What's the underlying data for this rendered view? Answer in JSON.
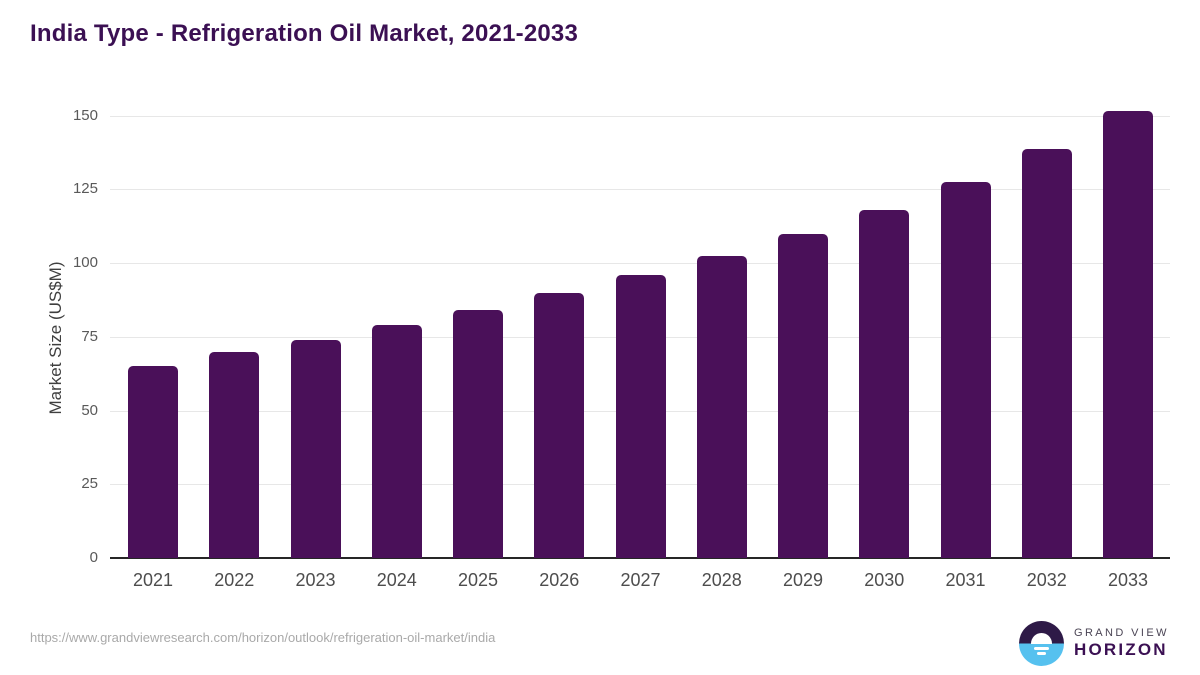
{
  "title": "India Type - Refrigeration Oil Market, 2021-2033",
  "source_url": "https://www.grandviewresearch.com/horizon/outlook/refrigeration-oil-market/india",
  "logo": {
    "top_text": "GRAND VIEW",
    "bottom_text": "HORIZON"
  },
  "colors": {
    "bar": "#4a1059",
    "title": "#3b1053",
    "axis_line": "#262626",
    "gridline": "#e7e7e7",
    "y_tick_text": "#595959",
    "x_tick_text": "#4d4d4d",
    "url_text": "#a9a9a9",
    "logo_dark": "#2e1a47",
    "logo_blue": "#56c1ef"
  },
  "chart_data": {
    "type": "bar",
    "title": "India Type - Refrigeration Oil Market, 2021-2033",
    "xlabel": "",
    "ylabel": "Market Size (US$M)",
    "categories": [
      "2021",
      "2022",
      "2023",
      "2024",
      "2025",
      "2026",
      "2027",
      "2028",
      "2029",
      "2030",
      "2031",
      "2032",
      "2033"
    ],
    "values": [
      65,
      70,
      74,
      79,
      84,
      90,
      96,
      102.5,
      110,
      118,
      127.5,
      138.5,
      151.5
    ],
    "ylim": [
      0,
      150
    ],
    "yticks": [
      0,
      25,
      50,
      75,
      100,
      125,
      150
    ],
    "grid": true,
    "legend": "none",
    "bar_color": "#4a1059"
  }
}
